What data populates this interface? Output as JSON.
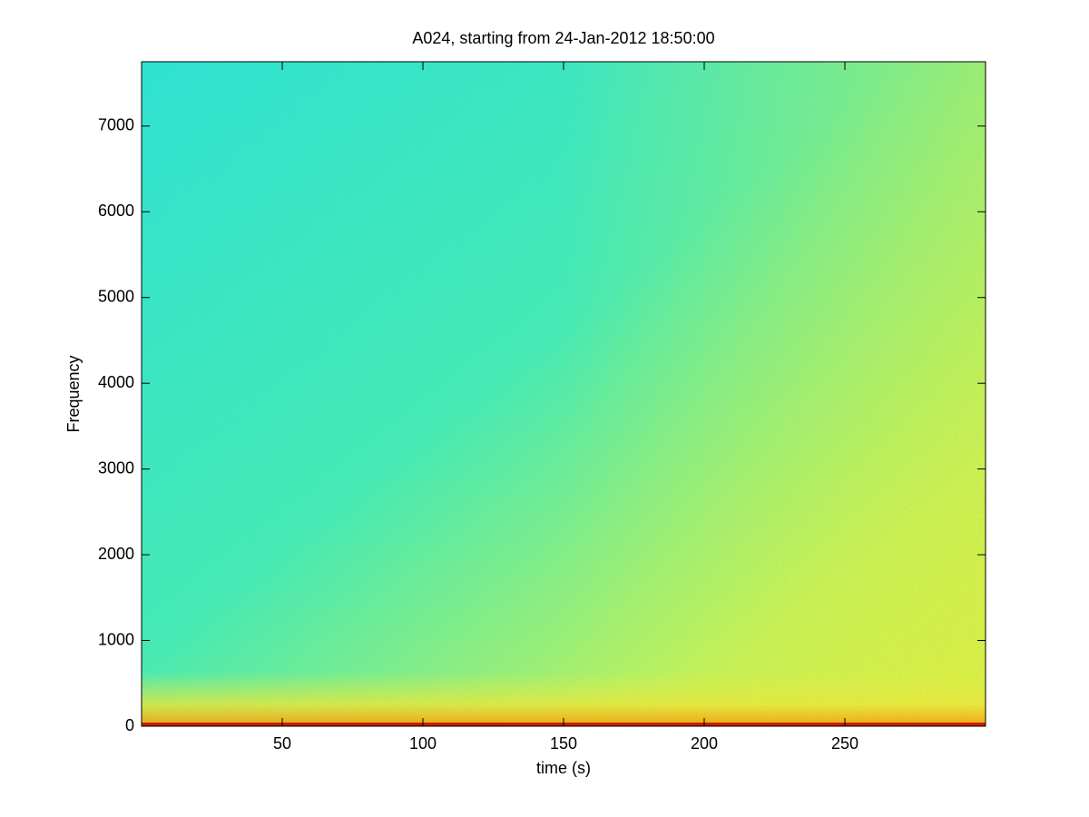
{
  "chart_data": {
    "type": "spectrogram",
    "title": "A024, starting from 24-Jan-2012 18:50:00",
    "x_label": "time (s)",
    "y_label": "Frequency",
    "xlim": [
      0,
      300
    ],
    "xticks": [
      50,
      100,
      150,
      200,
      250
    ],
    "ylim": [
      0,
      7750
    ],
    "yticks": [
      0,
      1000,
      2000,
      3000,
      4000,
      5000,
      6000,
      7000
    ]
  }
}
